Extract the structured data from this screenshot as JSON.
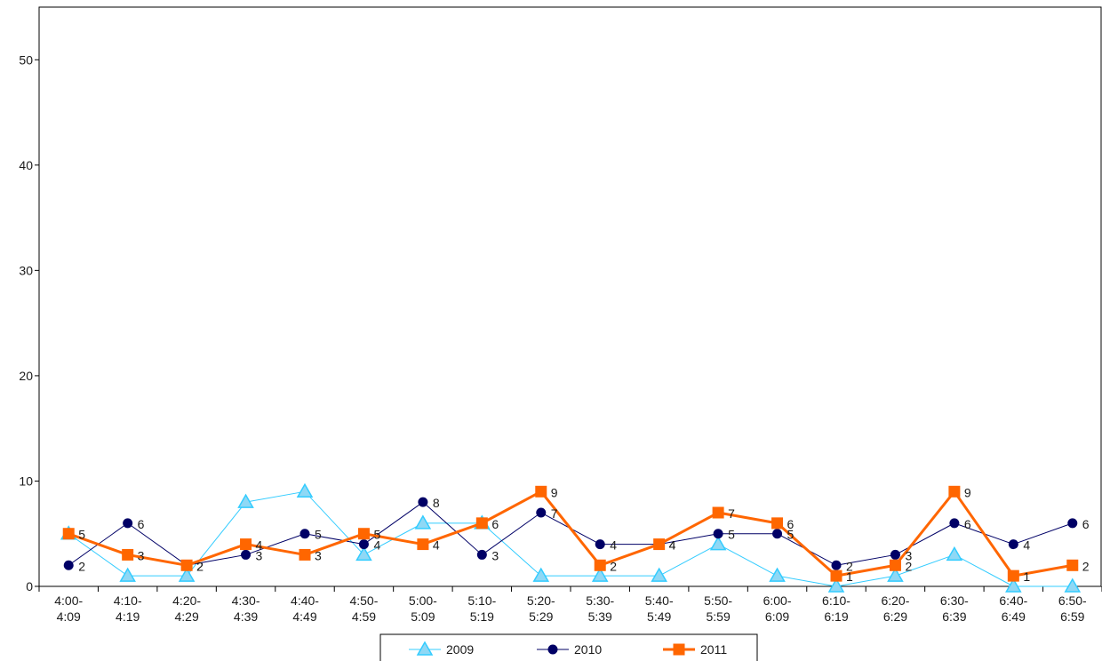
{
  "chart_data": {
    "type": "line",
    "categories": [
      [
        "4:00-",
        "4:09"
      ],
      [
        "4:10-",
        "4:19"
      ],
      [
        "4:20-",
        "4:29"
      ],
      [
        "4:30-",
        "4:39"
      ],
      [
        "4:40-",
        "4:49"
      ],
      [
        "4:50-",
        "4:59"
      ],
      [
        "5:00-",
        "5:09"
      ],
      [
        "5:10-",
        "5:19"
      ],
      [
        "5:20-",
        "5:29"
      ],
      [
        "5:30-",
        "5:39"
      ],
      [
        "5:40-",
        "5:49"
      ],
      [
        "5:50-",
        "5:59"
      ],
      [
        "6:00-",
        "6:09"
      ],
      [
        "6:10-",
        "6:19"
      ],
      [
        "6:20-",
        "6:29"
      ],
      [
        "6:30-",
        "6:39"
      ],
      [
        "6:40-",
        "6:49"
      ],
      [
        "6:50-",
        "6:59"
      ]
    ],
    "ylim": [
      0,
      55
    ],
    "yticks": [
      0,
      10,
      20,
      30,
      40,
      50
    ],
    "grid": false,
    "legend_position": "bottom",
    "series": [
      {
        "name": "2009",
        "color": "#33ccff",
        "marker": "triangle",
        "values": [
          5,
          1,
          1,
          8,
          9,
          3,
          6,
          6,
          1,
          1,
          1,
          4,
          1,
          0,
          1,
          3,
          0,
          0
        ],
        "data_labels": false
      },
      {
        "name": "2010",
        "color": "#000066",
        "marker": "circle",
        "values": [
          2,
          6,
          2,
          3,
          5,
          4,
          8,
          3,
          7,
          4,
          4,
          5,
          5,
          2,
          3,
          6,
          4,
          6
        ],
        "data_labels": true
      },
      {
        "name": "2011",
        "color": "#ff6600",
        "marker": "square",
        "values": [
          5,
          3,
          2,
          4,
          3,
          5,
          4,
          6,
          9,
          2,
          4,
          7,
          6,
          1,
          2,
          9,
          1,
          2
        ],
        "data_labels": true
      }
    ]
  }
}
